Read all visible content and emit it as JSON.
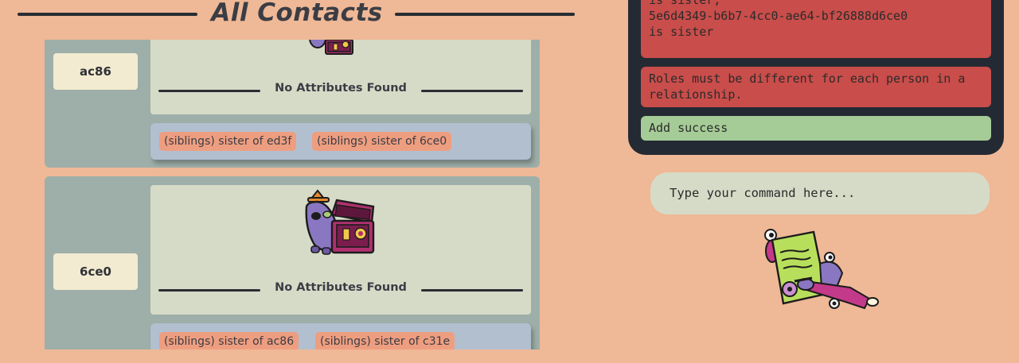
{
  "header": {
    "title": "All Contacts"
  },
  "contacts": [
    {
      "name": "ac86",
      "no_attributes_label": "No Attributes Found",
      "relations": [
        "(siblings) sister of ed3f",
        "(siblings) sister of 6ce0"
      ]
    },
    {
      "name": "6ce0",
      "no_attributes_label": "No Attributes Found",
      "relations": [
        "(siblings) sister of ac86",
        "(siblings) sister of c31e"
      ]
    }
  ],
  "result_log": {
    "messages": [
      {
        "type": "error",
        "lines": [
          "is sister,",
          "5e6d4349-b6b7-4cc0-ae64-bf26888d6ce0",
          "is sister"
        ]
      },
      {
        "type": "error",
        "lines": [
          "Roles must be different for each person in a",
          "relationship."
        ]
      },
      {
        "type": "success",
        "lines": [
          "Add success"
        ]
      }
    ]
  },
  "command_box": {
    "placeholder": "Type your command here..."
  },
  "icons": {
    "contact_mascot": "pirate-treasure-chest-icon",
    "command_mascot": "contract-writing-icon"
  },
  "colors": {
    "background": "#efb896",
    "card": "#9eafa9",
    "panel": "#d6dbc8",
    "tag": "#ee9e80",
    "log": "#242a33",
    "error": "#c94d4a",
    "success": "#a5cc96"
  }
}
